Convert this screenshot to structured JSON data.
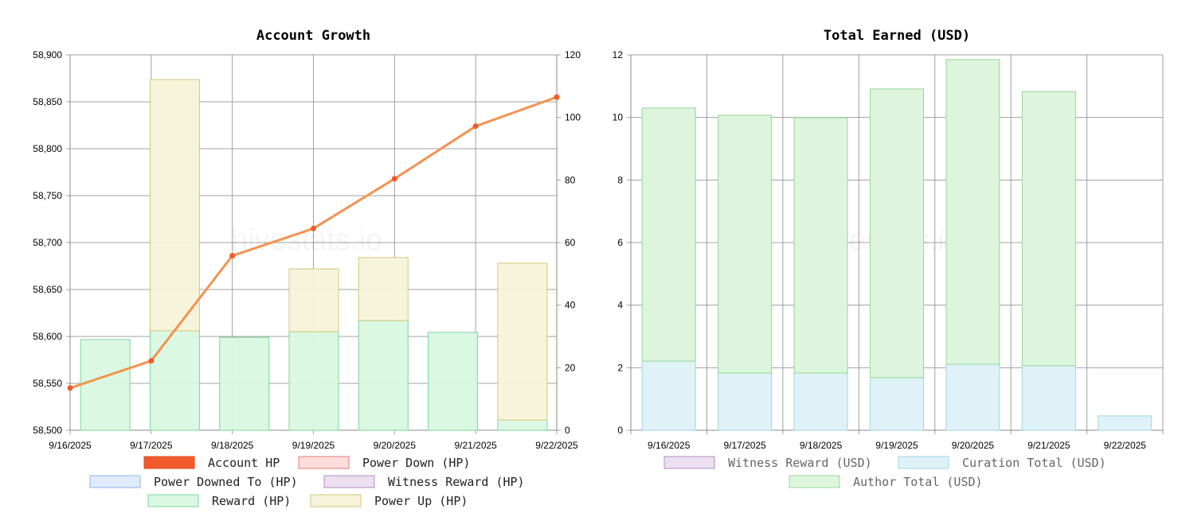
{
  "chart_data": [
    {
      "type": "bar+line",
      "title": "Account Growth",
      "watermark": "hivestats.io",
      "categories": [
        "9/16/2025",
        "9/17/2025",
        "9/18/2025",
        "9/19/2025",
        "9/20/2025",
        "9/21/2025",
        "9/22/2025"
      ],
      "y_left": {
        "range": [
          58500,
          58900
        ],
        "ticks": [
          "58,500",
          "58,550",
          "58,600",
          "58,650",
          "58,700",
          "58,750",
          "58,800",
          "58,850",
          "58,900"
        ]
      },
      "y_right": {
        "range": [
          0,
          120
        ],
        "ticks": [
          "0",
          "20",
          "40",
          "60",
          "80",
          "100",
          "120"
        ]
      },
      "line": {
        "name": "Account HP",
        "axis": "left",
        "values": [
          58545,
          58574,
          58686,
          58715,
          58768,
          58824,
          58855
        ]
      },
      "bars_stacked": [
        {
          "name": "Reward (HP)",
          "axis": "right",
          "values": [
            29.0,
            31.8,
            29.7,
            31.5,
            35.1,
            31.3,
            3.3
          ]
        },
        {
          "name": "Power Up (HP)",
          "axis": "right",
          "values": [
            0,
            80.3,
            0,
            20.1,
            20.1,
            0,
            50.1
          ]
        }
      ],
      "legend": [
        {
          "label": "Account HP",
          "fill": "#f15a2b",
          "stroke": "#e04a20"
        },
        {
          "label": "Power Down (HP)",
          "fill": "#fddcdc",
          "stroke": "#e77b7b"
        },
        {
          "label": "Power Downed To (HP)",
          "fill": "#e1ebfd",
          "stroke": "#8fb3f0"
        },
        {
          "label": "Witness Reward (HP)",
          "fill": "#ecdff0",
          "stroke": "#b38cc4"
        },
        {
          "label": "Reward (HP)",
          "fill": "#d9f8e2",
          "stroke": "#7fd59a"
        },
        {
          "label": "Power Up (HP)",
          "fill": "#f7f3da",
          "stroke": "#d4c778"
        }
      ],
      "legend_placement": "bottom",
      "grid": true
    },
    {
      "type": "bar",
      "title": "Total Earned (USD)",
      "watermark": "hivestats.io",
      "categories": [
        "9/16/2025",
        "9/17/2025",
        "9/18/2025",
        "9/19/2025",
        "9/20/2025",
        "9/21/2025",
        "9/22/2025"
      ],
      "y": {
        "range": [
          0,
          12
        ],
        "ticks": [
          "0",
          "2",
          "4",
          "6",
          "8",
          "10",
          "12"
        ]
      },
      "series": [
        {
          "name": "Witness Reward (USD)",
          "values": [
            0,
            0,
            0,
            0,
            0,
            0,
            0
          ]
        },
        {
          "name": "Curation Total (USD)",
          "values": [
            2.21,
            1.83,
            1.83,
            1.68,
            2.11,
            2.06,
            0.46
          ]
        },
        {
          "name": "Author Total (USD)",
          "values": [
            8.09,
            8.24,
            8.16,
            9.23,
            9.74,
            8.77,
            0
          ]
        }
      ],
      "legend": [
        {
          "label": "Witness Reward (USD)",
          "fill": "#ecdff0",
          "stroke": "#b38cc4"
        },
        {
          "label": "Curation Total (USD)",
          "fill": "#dff2f8",
          "stroke": "#a3d3e3"
        },
        {
          "label": "Author Total (USD)",
          "fill": "#dcf5dc",
          "stroke": "#98d698"
        }
      ],
      "legend_placement": "bottom",
      "grid": true
    }
  ]
}
